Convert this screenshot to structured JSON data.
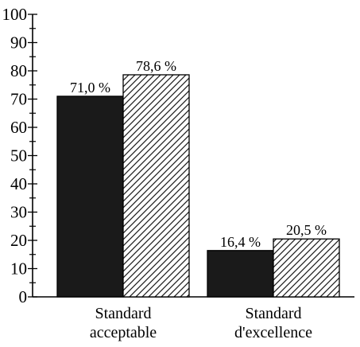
{
  "chart_data": {
    "type": "bar",
    "categories": [
      "Standard\nacceptable",
      "Standard\nd'excellence"
    ],
    "series": [
      {
        "values": [
          71.0,
          16.4
        ],
        "labels": [
          "71,0 %",
          "16,4 %"
        ],
        "fill": "solid",
        "color": "#1a1a1a"
      },
      {
        "values": [
          78.6,
          20.5
        ],
        "labels": [
          "78,6 %",
          "20,5 %"
        ],
        "fill": "hatched",
        "color": "#1a1a1a"
      }
    ],
    "title": "",
    "xlabel": "",
    "ylabel": "",
    "ylim": [
      0,
      100
    ],
    "yticks": [
      0,
      10,
      20,
      30,
      40,
      50,
      60,
      70,
      80,
      90,
      100
    ],
    "yminor_step": 5,
    "grid": false,
    "legend": "none"
  }
}
